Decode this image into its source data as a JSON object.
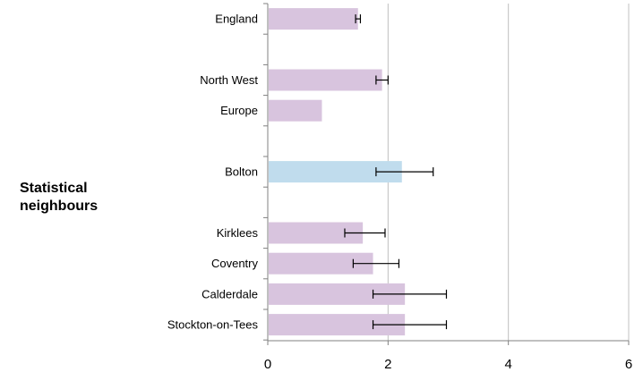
{
  "chart_data": {
    "type": "bar",
    "orientation": "horizontal",
    "title": "",
    "xlabel": "",
    "ylabel": "",
    "xlim": [
      0,
      6
    ],
    "x_ticks": [
      "0",
      "2",
      "4",
      "6"
    ],
    "grid": "vertical gridlines at x ticks",
    "group_label_line1": "Statistical",
    "group_label_line2": "neighbours",
    "colors": {
      "default": "#d8c4de",
      "highlight": "#c0dced",
      "gridline": "#c0c0c0",
      "axis": "#808080",
      "error_bar": "#000000"
    },
    "rows": [
      {
        "label": "England",
        "value": 1.5,
        "ci": [
          1.46,
          1.54
        ],
        "highlight": false
      },
      {
        "label": "",
        "value": null,
        "ci": null,
        "highlight": false
      },
      {
        "label": "North West",
        "value": 1.9,
        "ci": [
          1.8,
          2.0
        ],
        "highlight": false
      },
      {
        "label": "Europe",
        "value": 0.9,
        "ci": null,
        "highlight": false
      },
      {
        "label": "",
        "value": null,
        "ci": null,
        "highlight": false
      },
      {
        "label": "Bolton",
        "value": 2.23,
        "ci": [
          1.8,
          2.75
        ],
        "highlight": true
      },
      {
        "label": "",
        "value": null,
        "ci": null,
        "highlight": false
      },
      {
        "label": "Kirklees",
        "value": 1.58,
        "ci": [
          1.28,
          1.95
        ],
        "highlight": false
      },
      {
        "label": "Coventry",
        "value": 1.75,
        "ci": [
          1.42,
          2.18
        ],
        "highlight": false
      },
      {
        "label": "Calderdale",
        "value": 2.28,
        "ci": [
          1.75,
          2.97
        ],
        "highlight": false
      },
      {
        "label": "Stockton-on-Tees",
        "value": 2.28,
        "ci": [
          1.75,
          2.97
        ],
        "highlight": false
      }
    ]
  }
}
